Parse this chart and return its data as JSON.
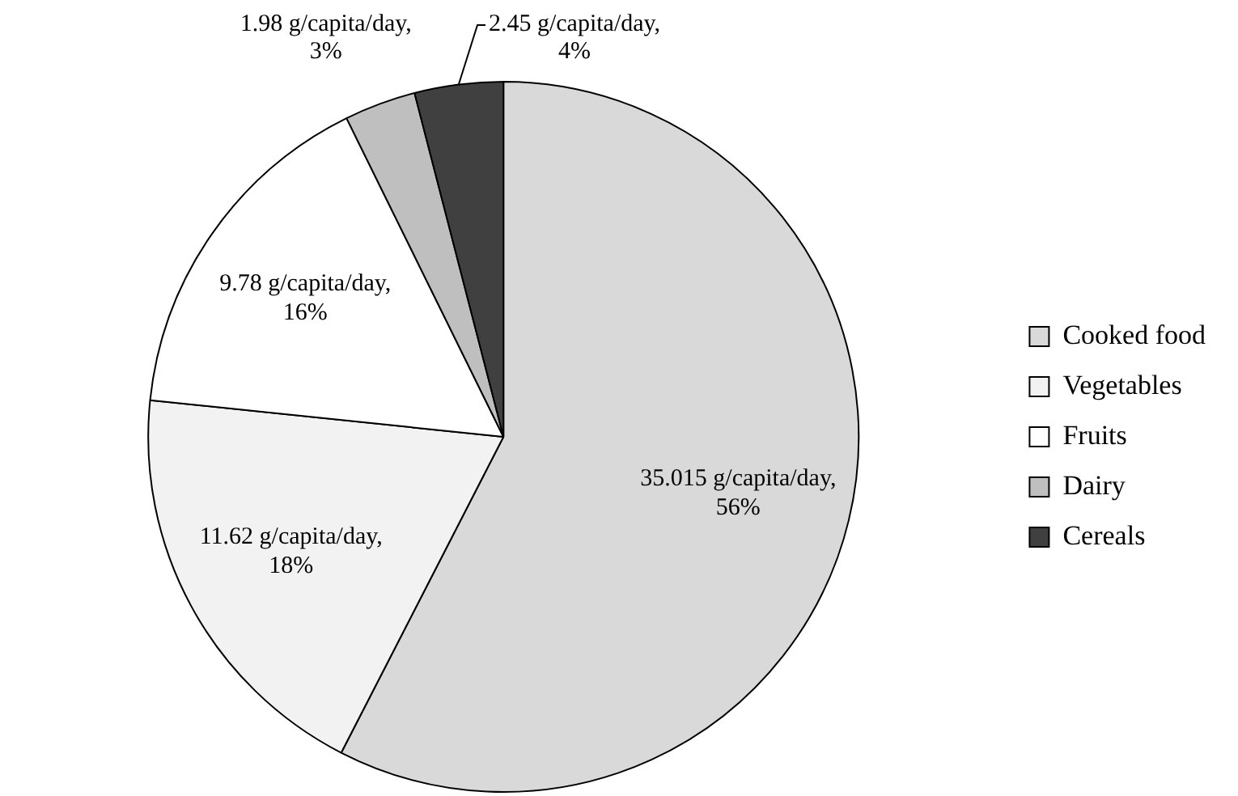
{
  "chart_data": {
    "type": "pie",
    "categories": [
      "Cooked food",
      "Vegetables",
      "Fruits",
      "Dairy",
      "Cereals"
    ],
    "values": [
      35.015,
      11.62,
      9.78,
      1.98,
      2.45
    ],
    "colors": [
      "#d9d9d9",
      "#f2f2f2",
      "#ffffff",
      "#bfbfbf",
      "#404040"
    ],
    "value_labels": [
      "35.015 g/capita/day,\n56%",
      "11.62 g/capita/day,\n18%",
      "9.78 g/capita/day,\n16%",
      "1.98 g/capita/day,\n3%",
      "2.45 g/capita/day,\n4%"
    ],
    "legend": "right"
  }
}
